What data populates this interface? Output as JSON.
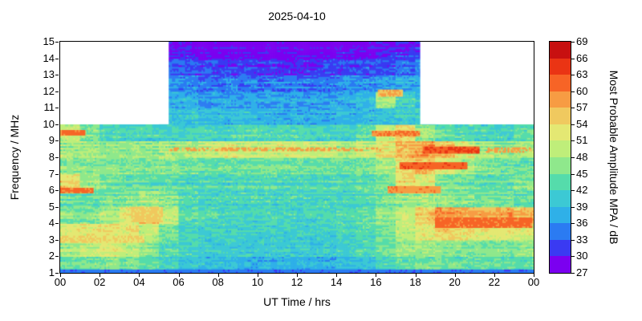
{
  "chart_data": {
    "type": "heatmap",
    "title": "2025-04-10",
    "xlabel": "UT Time / hrs",
    "ylabel": "Frequency / MHz",
    "x_range": [
      0,
      24
    ],
    "y_range": [
      1,
      15
    ],
    "x_tick_values": [
      0,
      2,
      4,
      6,
      8,
      10,
      12,
      14,
      16,
      18,
      20,
      22,
      24
    ],
    "x_tick_labels": [
      "00",
      "02",
      "04",
      "06",
      "08",
      "10",
      "12",
      "14",
      "16",
      "18",
      "20",
      "22",
      "00"
    ],
    "y_tick_values": [
      1,
      2,
      3,
      4,
      5,
      6,
      7,
      8,
      9,
      10,
      11,
      12,
      13,
      14,
      15
    ],
    "y_tick_labels": [
      "1",
      "2",
      "3",
      "4",
      "5",
      "6",
      "7",
      "8",
      "9",
      "10",
      "11",
      "12",
      "13",
      "14",
      "15"
    ],
    "colorbar": {
      "label": "Most Probable Amplitude MPA / dB",
      "min": 27,
      "max": 69,
      "tick_values": [
        27,
        30,
        33,
        36,
        39,
        42,
        45,
        48,
        51,
        54,
        57,
        60,
        63,
        66,
        69
      ],
      "band_colors": [
        "#7b00f0",
        "#3a3af2",
        "#2b7bf2",
        "#2fb0e8",
        "#3cc9d4",
        "#55dcab",
        "#8fe88c",
        "#bfee7a",
        "#e4e873",
        "#f0c95f",
        "#f79c43",
        "#f76426",
        "#ea3414",
        "#c81010"
      ]
    },
    "grid": {
      "x0": 0,
      "dx": 1,
      "y0": 1,
      "dy": 1,
      "rows": [
        [
          44,
          45,
          46,
          45,
          44,
          42,
          40,
          39,
          39,
          38,
          38,
          38,
          38,
          38,
          39,
          40,
          42,
          44,
          45,
          45,
          44,
          44,
          44,
          44
        ],
        [
          48,
          50,
          52,
          50,
          47,
          44,
          42,
          41,
          41,
          41,
          41,
          41,
          41,
          41,
          42,
          43,
          45,
          47,
          48,
          47,
          46,
          46,
          46,
          47
        ],
        [
          52,
          53,
          54,
          53,
          50,
          46,
          43,
          42,
          42,
          42,
          42,
          42,
          42,
          42,
          43,
          44,
          46,
          50,
          53,
          55,
          54,
          53,
          52,
          52
        ],
        [
          46,
          46,
          48,
          52,
          56,
          50,
          44,
          43,
          42,
          42,
          42,
          42,
          42,
          42,
          43,
          44,
          47,
          50,
          55,
          59,
          58,
          57,
          58,
          56
        ],
        [
          44,
          44,
          45,
          46,
          48,
          46,
          43,
          42,
          42,
          42,
          42,
          42,
          42,
          42,
          42,
          43,
          45,
          47,
          48,
          47,
          46,
          45,
          45,
          44
        ],
        [
          54,
          48,
          45,
          44,
          44,
          44,
          43,
          43,
          43,
          43,
          43,
          43,
          43,
          43,
          43,
          44,
          46,
          54,
          52,
          46,
          45,
          44,
          44,
          46
        ],
        [
          46,
          46,
          46,
          46,
          46,
          46,
          45,
          45,
          45,
          45,
          45,
          45,
          45,
          45,
          45,
          46,
          48,
          54,
          56,
          52,
          48,
          46,
          45,
          45
        ],
        [
          48,
          48,
          47,
          47,
          47,
          48,
          48,
          50,
          51,
          50,
          50,
          51,
          50,
          50,
          48,
          50,
          53,
          57,
          58,
          56,
          51,
          48,
          47,
          48
        ],
        [
          50,
          46,
          43,
          42,
          42,
          42,
          42,
          42,
          42,
          43,
          43,
          43,
          42,
          42,
          42,
          44,
          50,
          54,
          48,
          44,
          43,
          42,
          42,
          44
        ],
        [
          null,
          null,
          null,
          null,
          null,
          40,
          40,
          39,
          39,
          39,
          38,
          38,
          38,
          38,
          39,
          39,
          40,
          41,
          42,
          null,
          null,
          null,
          null,
          null
        ],
        [
          null,
          null,
          null,
          null,
          null,
          38,
          38,
          37,
          37,
          37,
          37,
          37,
          37,
          37,
          38,
          39,
          48,
          42,
          40,
          null,
          null,
          null,
          null,
          null
        ],
        [
          null,
          null,
          null,
          null,
          null,
          36,
          36,
          35,
          35,
          35,
          35,
          35,
          35,
          35,
          36,
          36,
          37,
          38,
          38,
          null,
          null,
          null,
          null,
          null
        ],
        [
          null,
          null,
          null,
          null,
          null,
          32,
          32,
          31,
          31,
          31,
          30,
          30,
          30,
          31,
          31,
          32,
          32,
          33,
          34,
          null,
          null,
          null,
          null,
          null
        ],
        [
          null,
          null,
          null,
          null,
          null,
          29,
          29,
          28,
          28,
          28,
          28,
          28,
          28,
          28,
          29,
          29,
          30,
          30,
          31,
          null,
          null,
          null,
          null,
          null
        ]
      ]
    },
    "no_data": [
      {
        "x": [
          0,
          5.5
        ],
        "y": [
          10,
          15
        ]
      },
      {
        "x": [
          18.25,
          24
        ],
        "y": [
          10,
          15
        ]
      }
    ],
    "features": [
      {
        "x": [
          0,
          24
        ],
        "y": [
          1.0,
          1.18
        ],
        "v": 34
      },
      {
        "x": [
          0,
          4.2
        ],
        "y": [
          2.85,
          3.2
        ],
        "v": 54
      },
      {
        "x": [
          19,
          23.9
        ],
        "y": [
          3.75,
          4.25
        ],
        "v": 61
      },
      {
        "x": [
          3.6,
          5.1
        ],
        "y": [
          4.1,
          4.9
        ],
        "v": 55
      },
      {
        "x": [
          0,
          1.6
        ],
        "y": [
          5.85,
          6.1
        ],
        "v": 61
      },
      {
        "x": [
          16.6,
          19.2
        ],
        "y": [
          5.85,
          6.15
        ],
        "v": 59
      },
      {
        "x": [
          17.2,
          20.6
        ],
        "y": [
          7.3,
          7.6
        ],
        "v": 62
      },
      {
        "x": [
          5.5,
          16.2
        ],
        "y": [
          8.4,
          8.6
        ],
        "v": 58,
        "dash": true
      },
      {
        "x": [
          18.4,
          21.2
        ],
        "y": [
          8.25,
          8.55
        ],
        "v": 63
      },
      {
        "x": [
          21.5,
          23.9
        ],
        "y": [
          8.3,
          8.55
        ],
        "v": 58,
        "dash": true
      },
      {
        "x": [
          0,
          1.2
        ],
        "y": [
          9.35,
          9.6
        ],
        "v": 61
      },
      {
        "x": [
          15.8,
          18.2
        ],
        "y": [
          9.3,
          9.6
        ],
        "v": 60
      },
      {
        "x": [
          16.1,
          17.3
        ],
        "y": [
          11.7,
          12.05
        ],
        "v": 57
      }
    ]
  }
}
